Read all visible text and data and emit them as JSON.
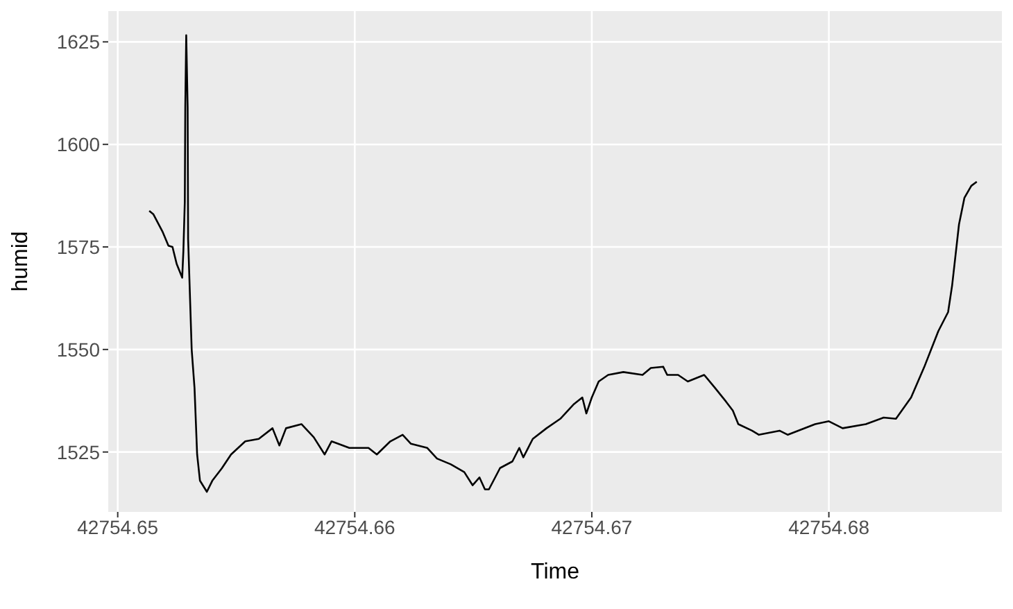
{
  "chart_data": {
    "type": "line",
    "xlabel": "Time",
    "ylabel": "humid",
    "xlim": [
      42754.6496,
      42754.6873
    ],
    "xticks": [
      42754.65,
      42754.66,
      42754.67,
      42754.68
    ],
    "ylim": [
      1510.4,
      1632.5
    ],
    "yticks": [
      1525,
      1550,
      1575,
      1600,
      1625
    ],
    "grid": true,
    "legend": false,
    "marker": "none",
    "line_style": "solid",
    "series": [
      {
        "color": "#000000",
        "x": [
          42754.65133,
          42754.6515,
          42754.6519,
          42754.65214,
          42754.65231,
          42754.65249,
          42754.65272,
          42754.65277,
          42754.65283,
          42754.65285,
          42754.65289,
          42754.65295,
          42754.65297,
          42754.65312,
          42754.65324,
          42754.65335,
          42754.65347,
          42754.65376,
          42754.65399,
          42754.65439,
          42754.65478,
          42754.65538,
          42754.65595,
          42754.65653,
          42754.65682,
          42754.6571,
          42754.65775,
          42754.65827,
          42754.65873,
          42754.65902,
          42754.6593,
          42754.65977,
          42754.66058,
          42754.66093,
          42754.6615,
          42754.66202,
          42754.66237,
          42754.66306,
          42754.66347,
          42754.66405,
          42754.66462,
          42754.66497,
          42754.66526,
          42754.66549,
          42754.66566,
          42754.66613,
          42754.66665,
          42754.66694,
          42754.66711,
          42754.66751,
          42754.66809,
          42754.66867,
          42754.66925,
          42754.6696,
          42754.66977,
          42754.67,
          42754.67029,
          42754.67069,
          42754.67133,
          42754.67214,
          42754.67249,
          42754.67301,
          42754.67318,
          42754.67364,
          42754.67405,
          42754.67474,
          42754.6752,
          42754.67566,
          42754.67595,
          42754.67618,
          42754.67676,
          42754.67705,
          42754.67792,
          42754.67827,
          42754.67942,
          42754.68,
          42754.68058,
          42754.68156,
          42754.68231,
          42754.68283,
          42754.68347,
          42754.68405,
          42754.68462,
          42754.68503,
          42754.6852,
          42754.68549,
          42754.68572,
          42754.68601,
          42754.68624
        ],
        "values": [
          1583.8,
          1583,
          1578.6,
          1575.3,
          1575,
          1570.8,
          1567.5,
          1574,
          1586,
          1609,
          1626.6,
          1609,
          1577,
          1550,
          1540.6,
          1524.4,
          1518,
          1515.3,
          1518,
          1521,
          1524.4,
          1527.6,
          1528.2,
          1530.8,
          1526.6,
          1530.8,
          1531.8,
          1528.6,
          1524.4,
          1527.6,
          1527,
          1526,
          1526,
          1524.4,
          1527.6,
          1529.2,
          1527,
          1526,
          1523.4,
          1522,
          1520.1,
          1516.9,
          1518.8,
          1515.9,
          1515.9,
          1521.1,
          1522.7,
          1526,
          1523.7,
          1528.2,
          1530.8,
          1533.1,
          1536.7,
          1538.3,
          1534.4,
          1538.3,
          1542.2,
          1543.8,
          1544.5,
          1543.8,
          1545.5,
          1545.8,
          1543.8,
          1543.8,
          1542.2,
          1543.8,
          1540.6,
          1537.3,
          1535.1,
          1531.8,
          1530.2,
          1529.2,
          1530.2,
          1529.2,
          1531.8,
          1532.5,
          1530.8,
          1531.8,
          1533.4,
          1533.1,
          1538.3,
          1546.1,
          1554.5,
          1559.1,
          1565.6,
          1580.5,
          1587,
          1589.9,
          1590.9
        ]
      }
    ]
  }
}
